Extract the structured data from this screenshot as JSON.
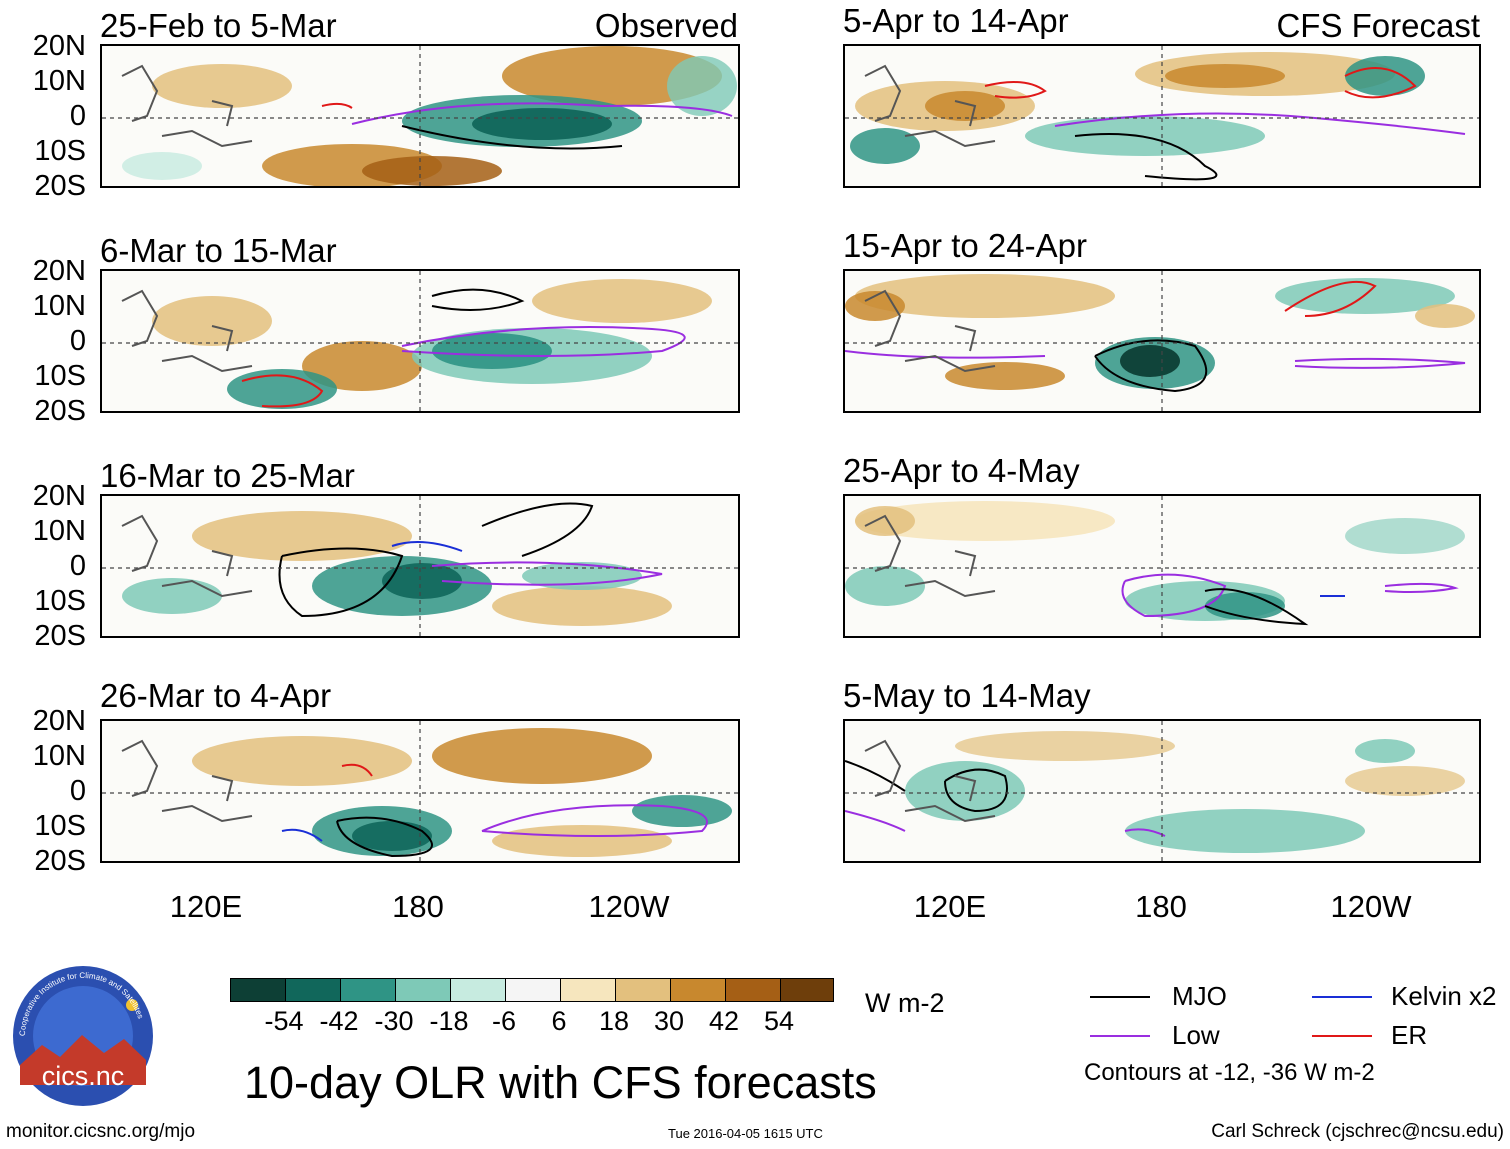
{
  "labels": {
    "observed": "Observed",
    "forecast": "CFS Forecast",
    "units": "W m-2",
    "main_title": "10-day OLR with CFS forecasts",
    "contours_note": "Contours at -12, -36 W m-2",
    "site_url": "monitor.cicsnc.org/mjo",
    "timestamp": "Tue 2016-04-05 1615 UTC",
    "author": "Carl Schreck (cjschrec@ncsu.edu)",
    "logo_text": "cics.nc",
    "logo_ring_text": "Cooperative Institute for Climate and Satellites"
  },
  "observed_panels": [
    {
      "title": "25-Feb to 5-Mar"
    },
    {
      "title": "6-Mar to 15-Mar"
    },
    {
      "title": "16-Mar to 25-Mar"
    },
    {
      "title": "26-Mar to 4-Apr"
    }
  ],
  "forecast_panels": [
    {
      "title": "5-Apr to 14-Apr"
    },
    {
      "title": "15-Apr to 24-Apr"
    },
    {
      "title": "25-Apr to 4-May"
    },
    {
      "title": "5-May to 14-May"
    }
  ],
  "lat_labels": [
    "20N",
    "10N",
    "0",
    "10S",
    "20S"
  ],
  "lon_labels": [
    "120E",
    "180",
    "120W"
  ],
  "colorbar": {
    "colors": [
      "#0d3f35",
      "#11675b",
      "#2f9485",
      "#7ec9b7",
      "#c7ebe0",
      "#f5f5f5",
      "#f6e6be",
      "#e3c07e",
      "#c8882e",
      "#a55f15",
      "#6e3e0b"
    ],
    "tick_labels": [
      "-54",
      "-42",
      "-30",
      "-18",
      "-6",
      "6",
      "18",
      "30",
      "42",
      "54"
    ]
  },
  "legend": [
    {
      "label": "MJO",
      "color": "#000000"
    },
    {
      "label": "Kelvin x2",
      "color": "#1a2fd6"
    },
    {
      "label": "Low",
      "color": "#9a2ee0"
    },
    {
      "label": "ER",
      "color": "#e01818"
    }
  ]
}
